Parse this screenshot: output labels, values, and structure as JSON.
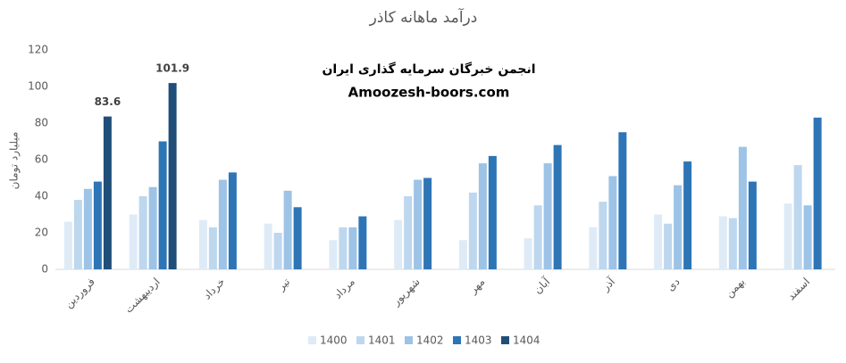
{
  "chart_data": {
    "type": "bar",
    "title": "درآمد ماهانه کاذر",
    "ylabel": "میلیارد تومان",
    "annotations": [
      "انجمن خبرگان سرمایه گذاری ایران",
      "Amoozesh-boors.com"
    ],
    "categories": [
      "فروردین",
      "اردیبهشت",
      "خرداد",
      "تیر",
      "مرداد",
      "شهریور",
      "مهر",
      "آبان",
      "آذر",
      "دی",
      "بهمن",
      "اسفند"
    ],
    "series": [
      {
        "name": "1400",
        "color": "#deebf7",
        "values": [
          26,
          30,
          27,
          25,
          16,
          27,
          16,
          17,
          23,
          30,
          29,
          36
        ]
      },
      {
        "name": "1401",
        "color": "#bdd7ee",
        "values": [
          38,
          40,
          23,
          20,
          23,
          40,
          42,
          35,
          37,
          25,
          28,
          57
        ]
      },
      {
        "name": "1402",
        "color": "#9dc3e6",
        "values": [
          44,
          45,
          49,
          43,
          23,
          49,
          58,
          58,
          51,
          46,
          67,
          35
        ]
      },
      {
        "name": "1403",
        "color": "#2e75b6",
        "values": [
          48,
          70,
          53,
          34,
          29,
          50,
          62,
          68,
          75,
          59,
          48,
          83
        ]
      },
      {
        "name": "1404",
        "color": "#1f4e79",
        "values": [
          83.6,
          101.9,
          null,
          null,
          null,
          null,
          null,
          null,
          null,
          null,
          null,
          null
        ]
      }
    ],
    "ylim": [
      0,
      120
    ],
    "yticks": [
      0,
      20,
      40,
      60,
      80,
      100,
      120
    ],
    "grid": false
  }
}
